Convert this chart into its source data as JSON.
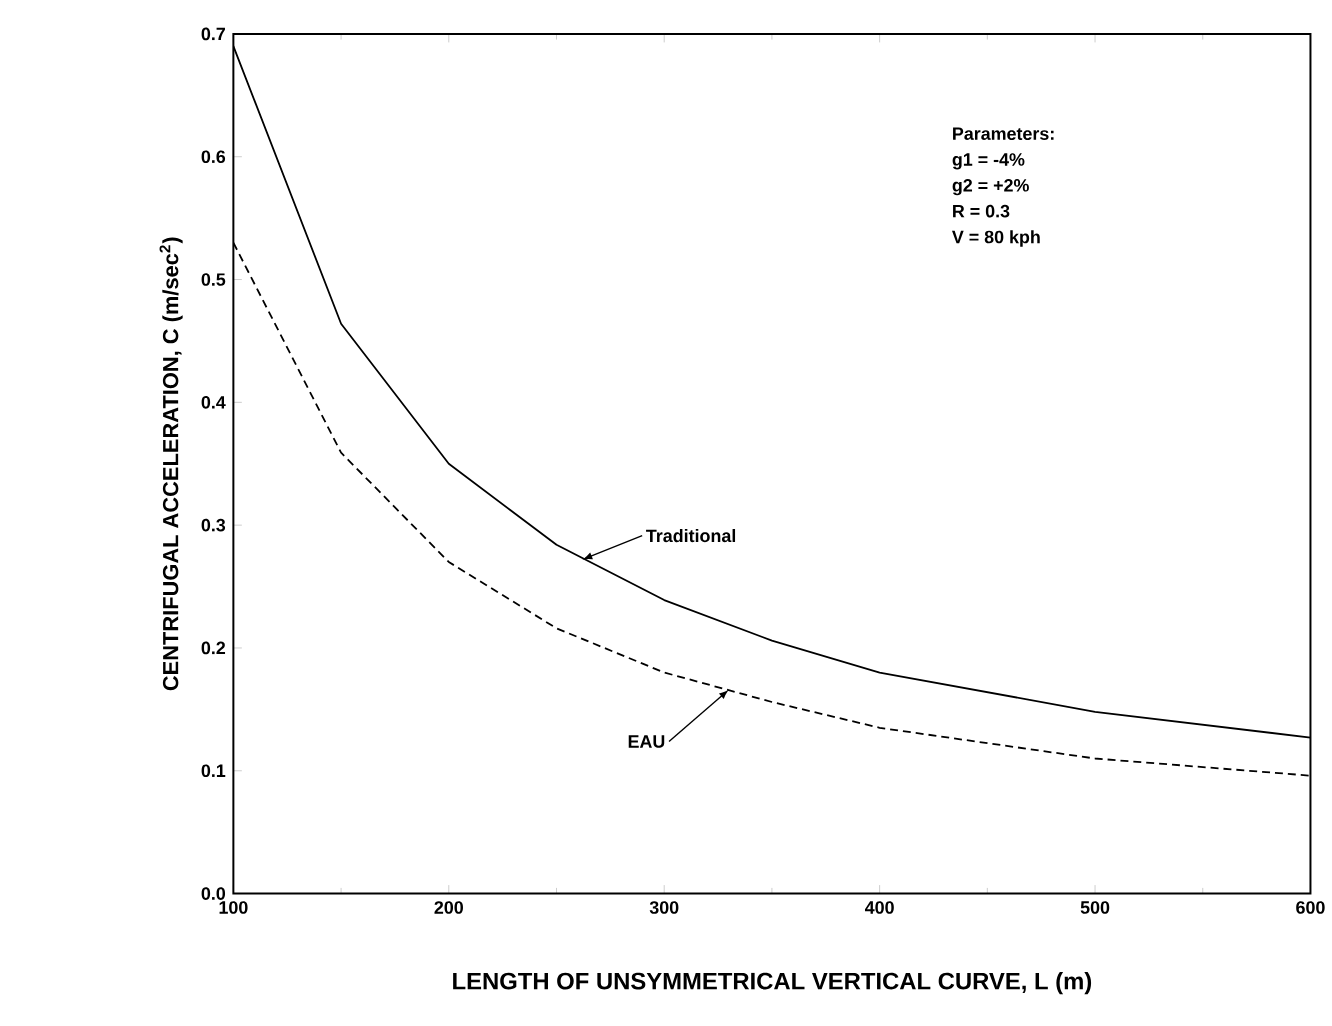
{
  "chart_data": {
    "type": "line",
    "xlabel": "LENGTH OF UNSYMMETRICAL VERTICAL CURVE, L (m)",
    "ylabel": "CENTRIFUGAL ACCELERATION, C (m/sec$^{2}$)",
    "x": [
      100,
      150,
      200,
      250,
      300,
      350,
      400,
      500,
      600
    ],
    "series": [
      {
        "color": "#000000",
        "line_style": "solid",
        "values": [
          0.69,
          0.464,
          0.35,
          0.284,
          0.239,
          0.206,
          0.18,
          0.148,
          0.127
        ]
      },
      {
        "color": "#000000",
        "line_style": "dashed",
        "values": [
          0.53,
          0.359,
          0.27,
          0.216,
          0.18,
          0.156,
          0.135,
          0.11,
          0.096
        ]
      }
    ],
    "xlim": [
      100,
      600
    ],
    "ylim": [
      0,
      0.7
    ],
    "xticks": [
      100,
      200,
      300,
      400,
      500,
      600
    ],
    "yticks": [
      {
        "value": 0,
        "label": "0.0"
      },
      0.1,
      0.2,
      0.3,
      0.4,
      0.5,
      0.6,
      0.7
    ],
    "marker": "none",
    "grid": false,
    "annotations": [
      {
        "text": "Traditional",
        "x": 262,
        "y": 0.272
      },
      {
        "text": "EAU",
        "x": 330,
        "y": 0.166
      },
      "Parameters:",
      "g1 = -4%",
      "g2 = +2%",
      "R = 0.3",
      "V = 80 kph"
    ]
  }
}
